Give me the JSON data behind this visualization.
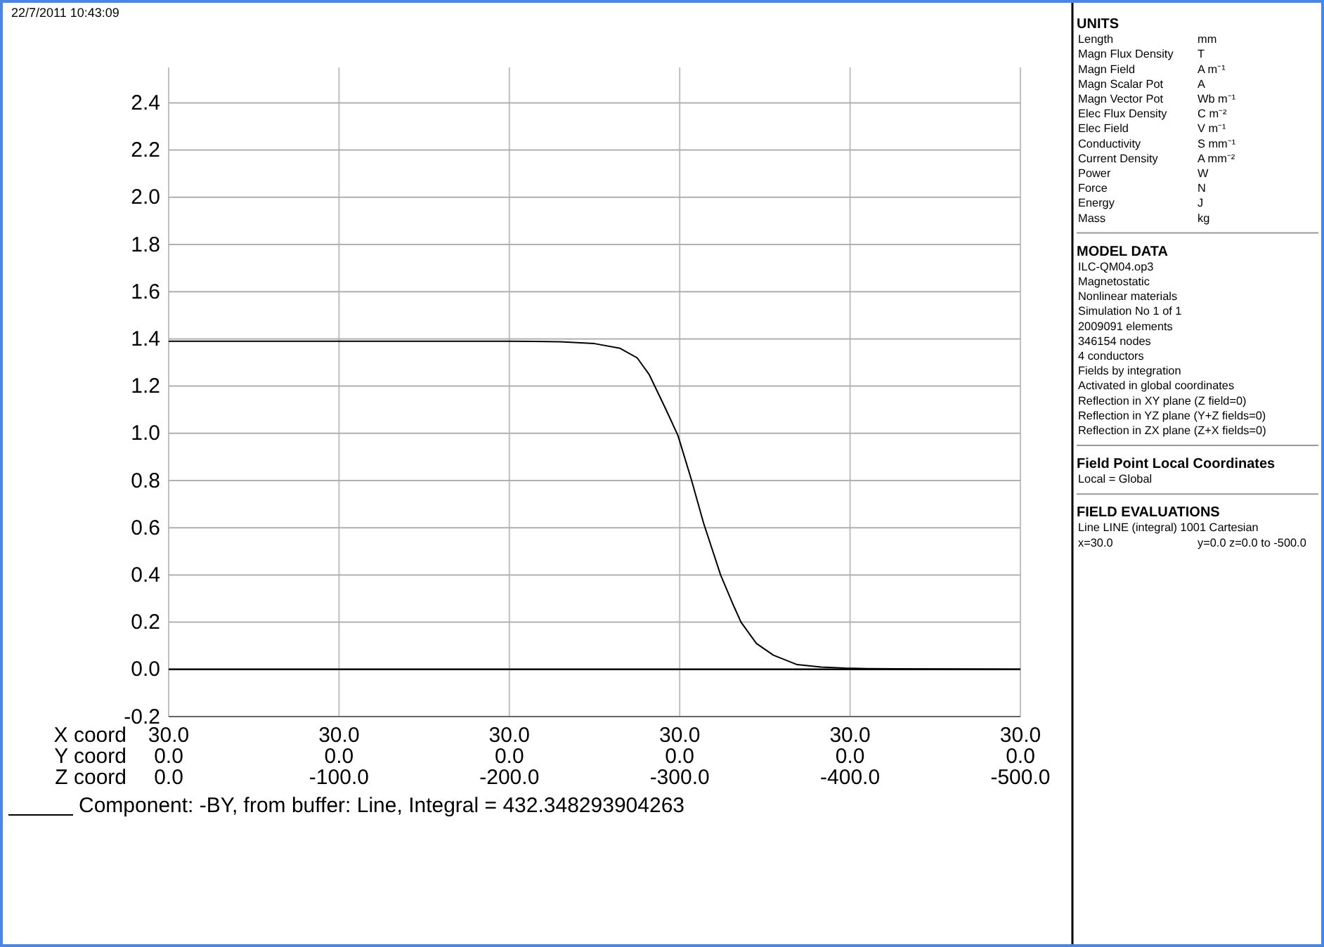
{
  "chart_data": [
    {
      "type": "line",
      "xlabel": "X coord\nY coord\nZ coord",
      "annotations": [
        "22/7/2011 10:43:09",
        "30.0\t30.0\t30.0\t30.0\t30.0\t30.0",
        "0.0\t0.0\t0.0\t0.0\t0.0\t0.0"
      ],
      "xlim": [
        0,
        -500
      ],
      "xticks": [
        {
          "value": 0,
          "label": "0.0"
        },
        {
          "value": -100,
          "label": "-100.0"
        },
        {
          "value": -200,
          "label": "-200.0"
        },
        {
          "value": -300,
          "label": "-300.0"
        },
        {
          "value": -400,
          "label": "-400.0"
        },
        {
          "value": -500,
          "label": "-500.0"
        }
      ],
      "ylim": [
        -0.2,
        2.55
      ],
      "yticks": [
        {
          "value": -0.2,
          "label": "-0.2"
        },
        {
          "value": 0,
          "label": "0.0"
        },
        0.2,
        0.4,
        0.6,
        0.8,
        {
          "value": 1,
          "label": "1.0"
        },
        1.2,
        1.4,
        1.6,
        1.8,
        {
          "value": 2,
          "label": "2.0"
        },
        2.2,
        2.4
      ],
      "grid": true,
      "legend": "bottom",
      "marker": "none",
      "line_style": "solid",
      "ref_lines": [
        {
          "axis": "y",
          "value": 0,
          "color": "#000000"
        }
      ],
      "series": [
        {
          "name": "Component: -BY, from buffer: Line, Integral = 432.348293904263",
          "color": "#000000",
          "x": [
            0,
            -100,
            -200,
            -230,
            -250,
            -265,
            -275,
            -282,
            -288,
            -292,
            -299,
            -307,
            -314,
            -324,
            -331,
            -336,
            -345,
            -355,
            -369,
            -383,
            -397,
            -410,
            -500
          ],
          "values": [
            1.39,
            1.39,
            1.39,
            1.388,
            1.38,
            1.36,
            1.32,
            1.25,
            1.16,
            1.1,
            0.99,
            0.8,
            0.62,
            0.4,
            0.28,
            0.2,
            0.11,
            0.06,
            0.02,
            0.01,
            0.005,
            0.003,
            0.0
          ]
        }
      ]
    },
    {
      "type": "other",
      "title": "UNITS",
      "annotations": [
        "Length\tmm",
        "Magn Flux Density\tT",
        "Magn Field\tA m⁻¹",
        "Magn Scalar Pot\tA",
        "Magn Vector Pot\tWb m⁻¹",
        "Elec Flux Density\tC m⁻²",
        "Elec Field\tV m⁻¹",
        "Conductivity\tS mm⁻¹",
        "Current Density\tA mm⁻²",
        "Power\tW",
        "Force\tN",
        "Energy\tJ",
        "Mass\tkg"
      ]
    },
    {
      "type": "other",
      "title": "MODEL DATA",
      "annotations": [
        "ILC-QM04.op3",
        "Magnetostatic",
        "Nonlinear materials",
        "Simulation No 1 of 1",
        "2009091 elements",
        "346154 nodes",
        "4 conductors",
        "Fields by integration",
        "Activated in global coordinates",
        "Reflection in XY plane (Z field=0)",
        "Reflection in YZ plane (Y+Z fields=0)",
        "Reflection in ZX plane (Z+X fields=0)"
      ]
    },
    {
      "type": "other",
      "title": "Field Point Local Coordinates",
      "annotations": [
        "Local = Global"
      ]
    },
    {
      "type": "other",
      "title": "FIELD EVALUATIONS",
      "annotations": [
        "Line LINE (integral) 1001  Cartesian",
        "x=30.0\ty=0.0 z=0.0 to -500.0"
      ]
    }
  ]
}
